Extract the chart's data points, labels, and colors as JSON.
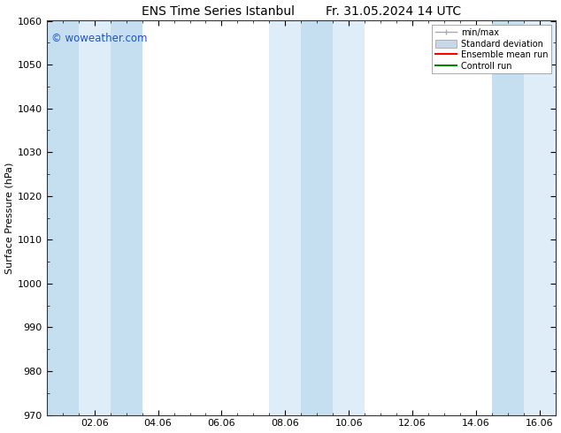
{
  "title": "ENS Time Series Istanbul        Fr. 31.05.2024 14 UTC",
  "ylabel": "Surface Pressure (hPa)",
  "ylim": [
    970,
    1060
  ],
  "yticks": [
    970,
    980,
    990,
    1000,
    1010,
    1020,
    1030,
    1040,
    1050,
    1060
  ],
  "xtick_labels": [
    "02.06",
    "04.06",
    "06.06",
    "08.06",
    "10.06",
    "12.06",
    "14.06",
    "16.06"
  ],
  "xtick_positions": [
    2.0,
    4.0,
    6.0,
    8.0,
    10.0,
    12.0,
    14.0,
    16.0
  ],
  "xlim": [
    0.5,
    16.5
  ],
  "watermark": "© woweather.com",
  "watermark_color": "#2255bb",
  "shaded_bands_dark": [
    {
      "x_start": 0.5,
      "x_end": 1.5
    },
    {
      "x_start": 2.5,
      "x_end": 3.5
    },
    {
      "x_start": 8.5,
      "x_end": 9.5
    },
    {
      "x_start": 14.5,
      "x_end": 15.5
    }
  ],
  "shaded_bands_light": [
    {
      "x_start": 1.5,
      "x_end": 2.5
    },
    {
      "x_start": 7.5,
      "x_end": 8.5
    },
    {
      "x_start": 9.5,
      "x_end": 10.5
    },
    {
      "x_start": 15.5,
      "x_end": 16.5
    }
  ],
  "color_dark": "#c5dff0",
  "color_light": "#deedf8",
  "legend_labels": [
    "min/max",
    "Standard deviation",
    "Ensemble mean run",
    "Controll run"
  ],
  "legend_colors_line": [
    "#aaaaaa",
    "#c8d8e8",
    "#ff0000",
    "#008800"
  ],
  "bg_color": "#ffffff",
  "title_fontsize": 10,
  "axis_fontsize": 8,
  "ylabel_fontsize": 8
}
